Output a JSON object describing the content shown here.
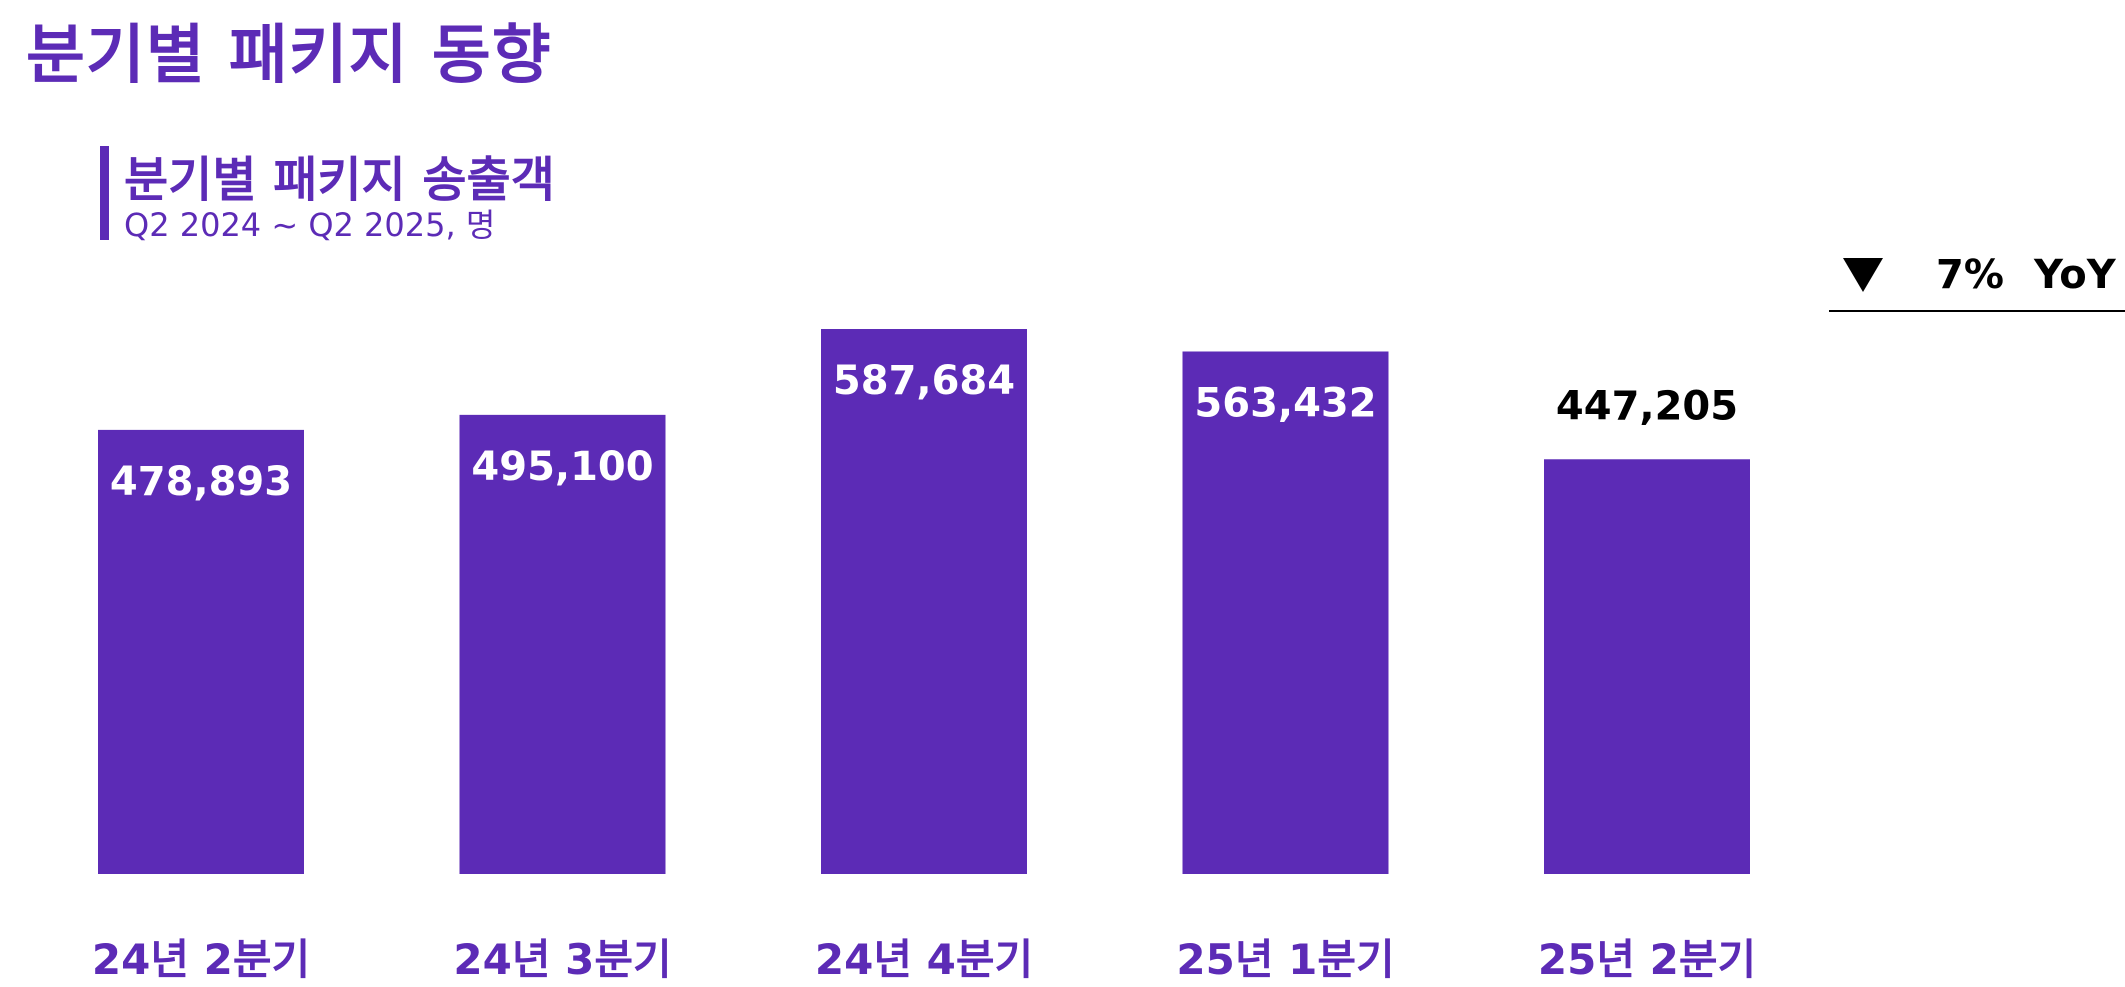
{
  "page": {
    "title": "분기별 패키지 동향"
  },
  "chart_data": {
    "type": "bar",
    "title": "분기별 패키지 송출객",
    "subtitle": "Q2 2024 ~ Q2 2025, 명",
    "categories": [
      "24년 2분기",
      "24년 3분기",
      "24년 4분기",
      "25년 1분기",
      "25년 2분기"
    ],
    "values": [
      478893,
      495100,
      587684,
      563432,
      447205
    ],
    "value_labels": [
      "478,893",
      "495,100",
      "587,684",
      "563,432",
      "447,205"
    ],
    "xlabel": "",
    "ylabel": "",
    "ylim": [
      0,
      587684
    ],
    "grid": false,
    "legend": "none",
    "colors": {
      "bar": "#5c2bb6",
      "label_inside": "#ffffff",
      "label_outside": "#000000",
      "category": "#5c2bb6"
    },
    "yoy": {
      "direction": "down",
      "arrow_icon": "triangle-down-icon",
      "percent": "7%",
      "label": "YoY"
    }
  }
}
